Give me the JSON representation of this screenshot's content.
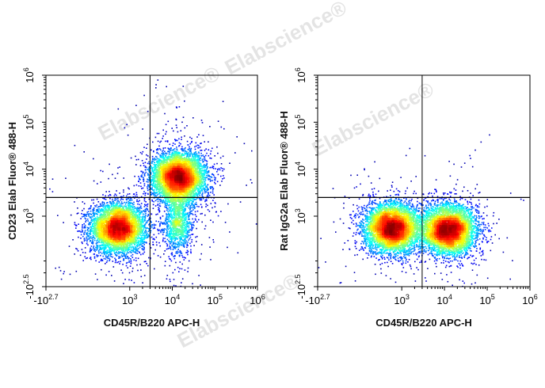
{
  "watermark": "Elabscience®",
  "chart_data": [
    {
      "type": "scatter",
      "title": "",
      "xlabel": "CD45R/B220 APC-H",
      "ylabel": "CD23 Elab Fluor® 488-H",
      "x_scale": "biexponential",
      "y_scale": "biexponential",
      "xticks": [
        {
          "base": "-10",
          "exp": "2.7",
          "value": -501
        },
        {
          "base": "10",
          "exp": "3",
          "value": 1000
        },
        {
          "base": "10",
          "exp": "4",
          "value": 10000
        },
        {
          "base": "10",
          "exp": "5",
          "value": 100000
        },
        {
          "base": "10",
          "exp": "6",
          "value": 1000000
        }
      ],
      "yticks": [
        {
          "base": "-10",
          "exp": "2.5",
          "value": -316
        },
        {
          "base": "10",
          "exp": "3",
          "value": 1000
        },
        {
          "base": "10",
          "exp": "4",
          "value": 10000
        },
        {
          "base": "10",
          "exp": "5",
          "value": 100000
        },
        {
          "base": "10",
          "exp": "6",
          "value": 1000000
        }
      ],
      "quadrant_gate": {
        "x": 3000,
        "y": 2500
      },
      "grid": false,
      "populations": [
        {
          "x": 600,
          "y": 650,
          "density": "high"
        },
        {
          "x": 14000,
          "y": 7000,
          "density": "high"
        },
        {
          "x": 13000,
          "y": 900,
          "density": "medium"
        }
      ]
    },
    {
      "type": "scatter",
      "title": "",
      "xlabel": "CD45R/B220 APC-H",
      "ylabel": "Rat IgG2a Elab Fluor® 488-H",
      "x_scale": "biexponential",
      "y_scale": "biexponential",
      "xticks": [
        {
          "base": "-10",
          "exp": "2.7",
          "value": -501
        },
        {
          "base": "10",
          "exp": "3",
          "value": 1000
        },
        {
          "base": "10",
          "exp": "4",
          "value": 10000
        },
        {
          "base": "10",
          "exp": "5",
          "value": 100000
        },
        {
          "base": "10",
          "exp": "6",
          "value": 1000000
        }
      ],
      "yticks": [
        {
          "base": "-10",
          "exp": "2.5",
          "value": -316
        },
        {
          "base": "10",
          "exp": "3",
          "value": 1000
        },
        {
          "base": "10",
          "exp": "4",
          "value": 10000
        },
        {
          "base": "10",
          "exp": "5",
          "value": 100000
        },
        {
          "base": "10",
          "exp": "6",
          "value": 1000000
        }
      ],
      "quadrant_gate": {
        "x": 3000,
        "y": 2500
      },
      "grid": false,
      "populations": [
        {
          "x": 650,
          "y": 650,
          "density": "high"
        },
        {
          "x": 12000,
          "y": 600,
          "density": "high"
        }
      ]
    }
  ]
}
